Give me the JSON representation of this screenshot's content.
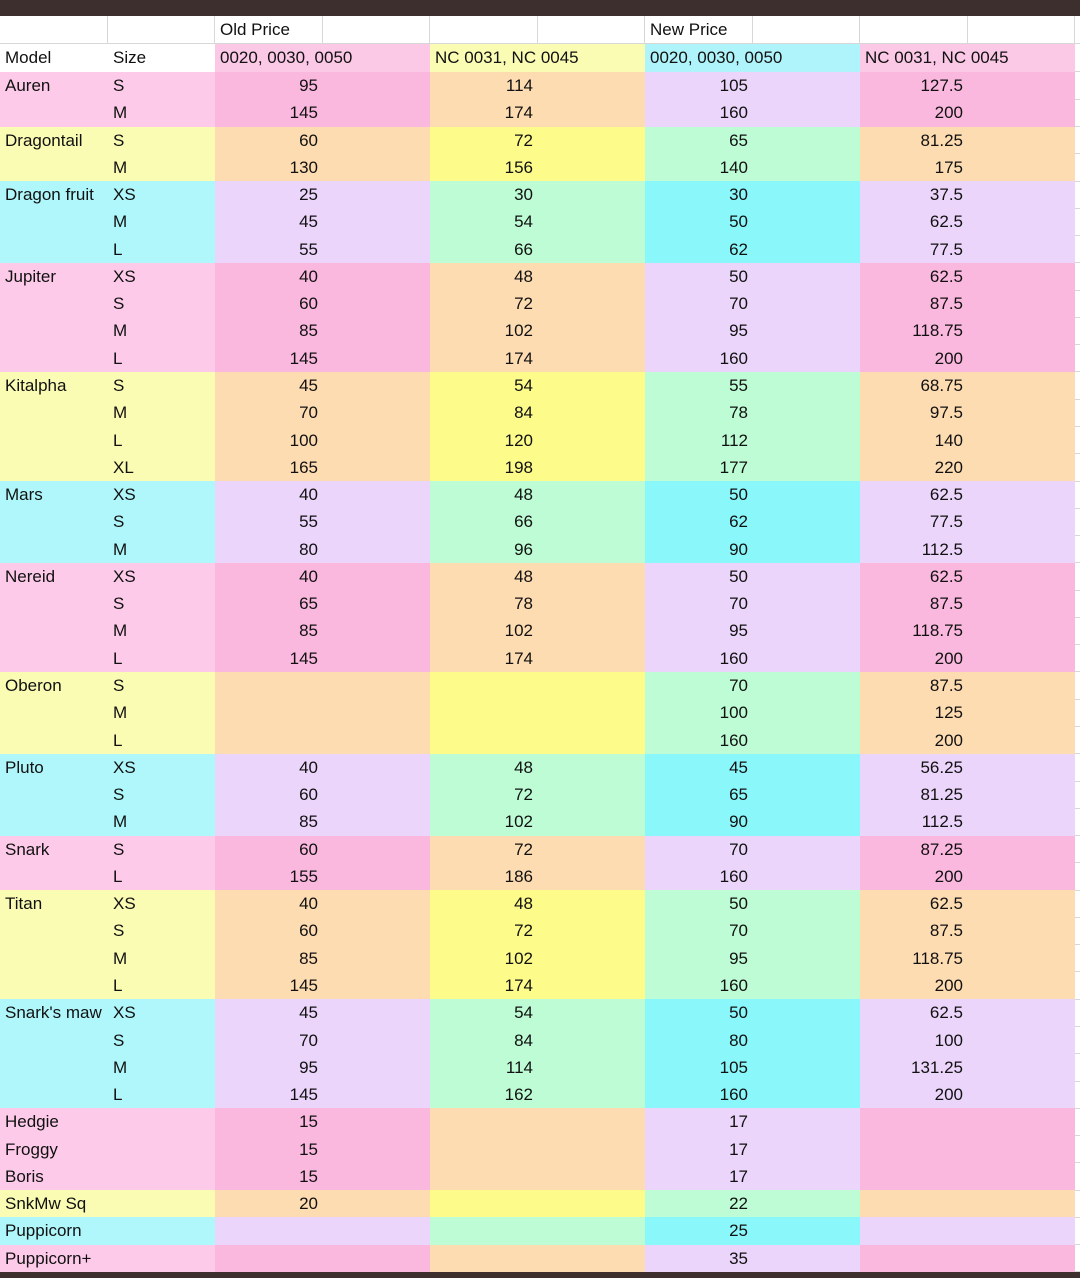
{
  "header": {
    "old_price": "Old Price",
    "new_price": "New Price",
    "model": "Model",
    "size": "Size",
    "old_std": "0020, 0030, 0050",
    "old_nc": "NC 0031, NC 0045",
    "new_std": "0020, 0030, 0050",
    "new_nc": "NC 0031, NC 0045"
  },
  "themes": {
    "pink": [
      "#fdcbe9",
      "#fbb8de",
      "#fedcb2",
      "#ecd5fb",
      "#fbb8de"
    ],
    "yellow": [
      "#fafcb4",
      "#fedcb2",
      "#fdfb8a",
      "#bdfcd4",
      "#fedcb2"
    ],
    "cyan": [
      "#b0f7fb",
      "#ecd5fb",
      "#bdfcd4",
      "#8af8fb",
      "#ecd5fb"
    ],
    "header": [
      "#ffffff",
      "#fbc8e6",
      "#fafcb4",
      "#b0f4fb",
      "#fbc8e6"
    ]
  },
  "groups": [
    {
      "model": "Auren",
      "theme": "pink",
      "rows": [
        [
          "S",
          "95",
          "114",
          "105",
          "127.5"
        ],
        [
          "M",
          "145",
          "174",
          "160",
          "200"
        ]
      ]
    },
    {
      "model": "Dragontail",
      "theme": "yellow",
      "rows": [
        [
          "S",
          "60",
          "72",
          "65",
          "81.25"
        ],
        [
          "M",
          "130",
          "156",
          "140",
          "175"
        ]
      ]
    },
    {
      "model": "Dragon fruit",
      "theme": "cyan",
      "rows": [
        [
          "XS",
          "25",
          "30",
          "30",
          "37.5"
        ],
        [
          "M",
          "45",
          "54",
          "50",
          "62.5"
        ],
        [
          "L",
          "55",
          "66",
          "62",
          "77.5"
        ]
      ]
    },
    {
      "model": "Jupiter",
      "theme": "pink",
      "rows": [
        [
          "XS",
          "40",
          "48",
          "50",
          "62.5"
        ],
        [
          "S",
          "60",
          "72",
          "70",
          "87.5"
        ],
        [
          "M",
          "85",
          "102",
          "95",
          "118.75"
        ],
        [
          "L",
          "145",
          "174",
          "160",
          "200"
        ]
      ]
    },
    {
      "model": "Kitalpha",
      "theme": "yellow",
      "rows": [
        [
          "S",
          "45",
          "54",
          "55",
          "68.75"
        ],
        [
          "M",
          "70",
          "84",
          "78",
          "97.5"
        ],
        [
          "L",
          "100",
          "120",
          "112",
          "140"
        ],
        [
          "XL",
          "165",
          "198",
          "177",
          "220"
        ]
      ]
    },
    {
      "model": "Mars",
      "theme": "cyan",
      "rows": [
        [
          "XS",
          "40",
          "48",
          "50",
          "62.5"
        ],
        [
          "S",
          "55",
          "66",
          "62",
          "77.5"
        ],
        [
          "M",
          "80",
          "96",
          "90",
          "112.5"
        ]
      ]
    },
    {
      "model": "Nereid",
      "theme": "pink",
      "rows": [
        [
          "XS",
          "40",
          "48",
          "50",
          "62.5"
        ],
        [
          "S",
          "65",
          "78",
          "70",
          "87.5"
        ],
        [
          "M",
          "85",
          "102",
          "95",
          "118.75"
        ],
        [
          "L",
          "145",
          "174",
          "160",
          "200"
        ]
      ]
    },
    {
      "model": "Oberon",
      "theme": "yellow",
      "rows": [
        [
          "S",
          "",
          "",
          "70",
          "87.5"
        ],
        [
          "M",
          "",
          "",
          "100",
          "125"
        ],
        [
          "L",
          "",
          "",
          "160",
          "200"
        ]
      ]
    },
    {
      "model": "Pluto",
      "theme": "cyan",
      "rows": [
        [
          "XS",
          "40",
          "48",
          "45",
          "56.25"
        ],
        [
          "S",
          "60",
          "72",
          "65",
          "81.25"
        ],
        [
          "M",
          "85",
          "102",
          "90",
          "112.5"
        ]
      ]
    },
    {
      "model": "Snark",
      "theme": "pink",
      "rows": [
        [
          "S",
          "60",
          "72",
          "70",
          "87.25"
        ],
        [
          "L",
          "155",
          "186",
          "160",
          "200"
        ]
      ]
    },
    {
      "model": "Titan",
      "theme": "yellow",
      "rows": [
        [
          "XS",
          "40",
          "48",
          "50",
          "62.5"
        ],
        [
          "S",
          "60",
          "72",
          "70",
          "87.5"
        ],
        [
          "M",
          "85",
          "102",
          "95",
          "118.75"
        ],
        [
          "L",
          "145",
          "174",
          "160",
          "200"
        ]
      ]
    },
    {
      "model": "Snark's maw",
      "theme": "cyan",
      "rows": [
        [
          "XS",
          "45",
          "54",
          "50",
          "62.5"
        ],
        [
          "S",
          "70",
          "84",
          "80",
          "100"
        ],
        [
          "M",
          "95",
          "114",
          "105",
          "131.25"
        ],
        [
          "L",
          "145",
          "162",
          "160",
          "200"
        ]
      ]
    },
    {
      "model": "Hedgie",
      "theme": "pink",
      "rows": [
        [
          "",
          "15",
          "",
          "17",
          ""
        ]
      ]
    },
    {
      "model": "Froggy",
      "theme": "pink",
      "rows": [
        [
          "",
          "15",
          "",
          "17",
          ""
        ]
      ]
    },
    {
      "model": "Boris",
      "theme": "pink",
      "rows": [
        [
          "",
          "15",
          "",
          "17",
          ""
        ]
      ]
    },
    {
      "model": "SnkMw Sq",
      "theme": "yellow",
      "rows": [
        [
          "",
          "20",
          "",
          "22",
          ""
        ]
      ]
    },
    {
      "model": "Puppicorn",
      "theme": "cyan",
      "rows": [
        [
          "",
          "",
          "",
          "25",
          ""
        ]
      ]
    },
    {
      "model": "Puppicorn+",
      "theme": "pink",
      "rows": [
        [
          "",
          "",
          "",
          "35",
          ""
        ]
      ]
    }
  ]
}
